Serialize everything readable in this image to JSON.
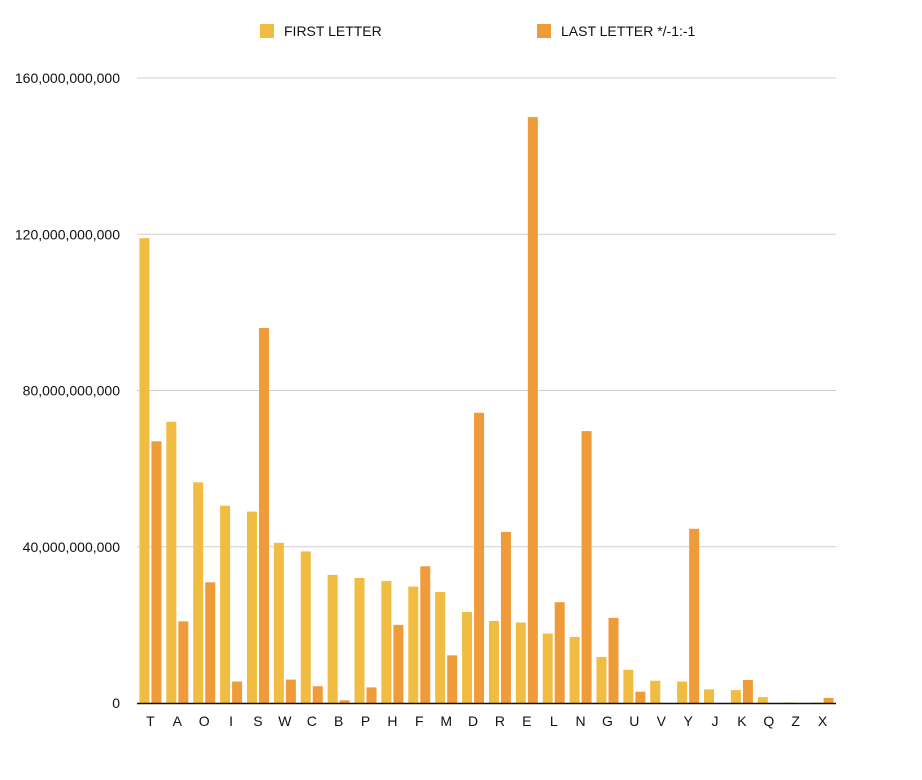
{
  "chart_data": {
    "type": "bar",
    "categories": [
      "T",
      "A",
      "O",
      "I",
      "S",
      "W",
      "C",
      "B",
      "P",
      "H",
      "F",
      "M",
      "D",
      "R",
      "E",
      "L",
      "N",
      "G",
      "U",
      "V",
      "Y",
      "J",
      "K",
      "Q",
      "Z",
      "X"
    ],
    "series": [
      {
        "name": "FIRST LETTER",
        "color": "#F0BC41",
        "values": [
          119000000000,
          72000000000,
          56500000000,
          50500000000,
          49000000000,
          41000000000,
          38800000000,
          32800000000,
          32000000000,
          31200000000,
          29800000000,
          28400000000,
          23300000000,
          21000000000,
          20600000000,
          17800000000,
          16900000000,
          11800000000,
          8500000000,
          5700000000,
          5500000000,
          3500000000,
          3300000000,
          1500000000,
          100000000,
          100000000
        ]
      },
      {
        "name": "LAST LETTER */-1:-1",
        "color": "#EF9B3A",
        "values": [
          67000000000,
          20900000000,
          30900000000,
          5500000000,
          96000000000,
          6000000000,
          4300000000,
          700000000,
          4000000000,
          20000000000,
          35000000000,
          12200000000,
          74300000000,
          43800000000,
          150000000000,
          25800000000,
          69600000000,
          21800000000,
          2900000000,
          0,
          44600000000,
          0,
          5900000000,
          0,
          0,
          1300000000
        ]
      }
    ],
    "yticks": [
      "0",
      "40,000,000,000",
      "80,000,000,000",
      "120,000,000,000",
      "160,000,000,000"
    ],
    "ylim": [
      0,
      160000000000
    ],
    "grid": true,
    "legend_position": "top-center",
    "title": "",
    "xlabel": "",
    "ylabel": ""
  }
}
